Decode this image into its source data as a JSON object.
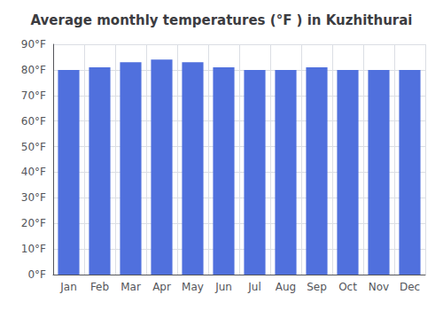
{
  "chart_data": {
    "type": "bar",
    "title": "Average monthly temperatures (°F ) in Kuzhithurai",
    "categories": [
      "Jan",
      "Feb",
      "Mar",
      "Apr",
      "May",
      "Jun",
      "Jul",
      "Aug",
      "Sep",
      "Oct",
      "Nov",
      "Dec"
    ],
    "values": [
      80,
      81,
      83,
      84,
      83,
      81,
      80,
      80,
      81,
      80,
      80,
      80
    ],
    "ylim": [
      0,
      90
    ],
    "yticks": [
      {
        "value": 0,
        "label": "0°F"
      },
      {
        "value": 10,
        "label": "10°F"
      },
      {
        "value": 20,
        "label": "20°F"
      },
      {
        "value": 30,
        "label": "30°F"
      },
      {
        "value": 40,
        "label": "40°F"
      },
      {
        "value": 50,
        "label": "50°F"
      },
      {
        "value": 60,
        "label": "60°F"
      },
      {
        "value": 70,
        "label": "70°F"
      },
      {
        "value": 80,
        "label": "80°F"
      },
      {
        "value": 90,
        "label": "90°F"
      }
    ],
    "grid": true
  }
}
